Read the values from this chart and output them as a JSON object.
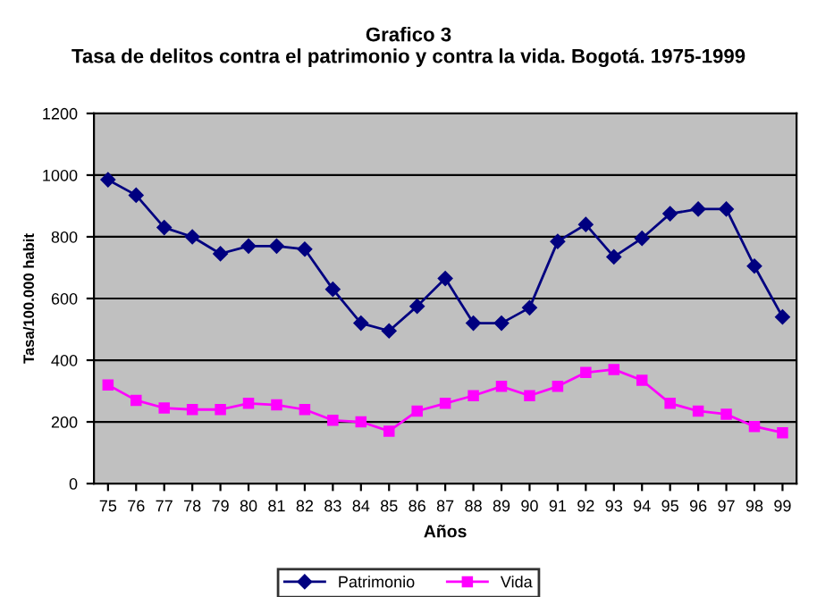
{
  "chart_data": {
    "type": "line",
    "title": "Grafico 3\nTasa de delitos contra el patrimonio y contra la vida. Bogotá. 1975-1999",
    "xlabel": "Años",
    "ylabel": "Tasa/100.000 habit",
    "categories": [
      "75",
      "76",
      "77",
      "78",
      "79",
      "80",
      "81",
      "82",
      "83",
      "84",
      "85",
      "86",
      "87",
      "88",
      "89",
      "90",
      "91",
      "92",
      "93",
      "94",
      "95",
      "96",
      "97",
      "98",
      "99"
    ],
    "series": [
      {
        "name": "Patrimonio",
        "color": "#000080",
        "marker": "diamond",
        "values": [
          985,
          935,
          830,
          800,
          745,
          770,
          770,
          760,
          630,
          520,
          495,
          575,
          665,
          520,
          520,
          570,
          785,
          840,
          735,
          795,
          875,
          890,
          890,
          705,
          540
        ]
      },
      {
        "name": "Vida",
        "color": "#ff00ff",
        "marker": "square",
        "values": [
          320,
          270,
          245,
          240,
          240,
          260,
          255,
          240,
          205,
          200,
          170,
          235,
          260,
          285,
          315,
          285,
          315,
          360,
          370,
          335,
          260,
          235,
          225,
          185,
          165
        ]
      }
    ],
    "ylim": [
      0,
      1200
    ],
    "yticks": [
      0,
      200,
      400,
      600,
      800,
      1000,
      1200
    ],
    "grid": "y",
    "legend": "bottom",
    "line_style": "solid"
  }
}
